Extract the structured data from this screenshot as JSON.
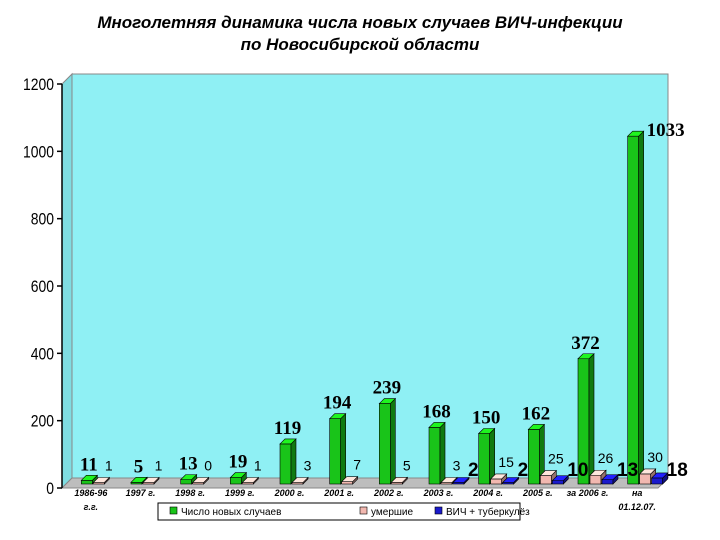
{
  "chart_data": {
    "type": "bar",
    "title": "Многолетняя динамика числа новых случаев ВИЧ-инфекции",
    "subtitle": "по Новосибирской области",
    "xlabel": "",
    "ylabel": "",
    "ylim": [
      0,
      1200
    ],
    "yticks": [
      "0",
      "200",
      "400",
      "600",
      "800",
      "1000",
      "1200"
    ],
    "grid": false,
    "legend_position": "bottom",
    "categories": [
      [
        "1986-96",
        "г.г."
      ],
      [
        "1997 г."
      ],
      [
        "1998 г."
      ],
      [
        "1999 г."
      ],
      [
        "2000 г."
      ],
      [
        "2001 г."
      ],
      [
        "2002 г."
      ],
      [
        "2003 г."
      ],
      [
        "2004 г."
      ],
      [
        "2005 г."
      ],
      [
        "за  2006 г."
      ],
      [
        "на",
        "01.12.07."
      ]
    ],
    "series": [
      {
        "name": "Число новых случаев",
        "color": "#19c419",
        "values": [
          11,
          5,
          13,
          19,
          119,
          194,
          239,
          168,
          150,
          162,
          372,
          1033
        ],
        "labels": [
          "11",
          "5",
          "13",
          "19",
          "119",
          "194",
          "239",
          "168",
          "150",
          "162",
          "372",
          "1033"
        ]
      },
      {
        "name": "умершие",
        "color": "#f2b8b0",
        "values": [
          1,
          1,
          0,
          1,
          3,
          7,
          5,
          3,
          15,
          25,
          26,
          30
        ],
        "labels": [
          "1",
          "1",
          "0",
          "1",
          "3",
          "7",
          "5",
          "3",
          "15",
          "25",
          "26",
          "30"
        ]
      },
      {
        "name": "ВИЧ + туберкулёз",
        "color": "#1a1acc",
        "values": [
          null,
          null,
          null,
          null,
          null,
          null,
          null,
          2,
          2,
          10,
          13,
          18
        ],
        "labels": [
          "",
          "",
          "",
          "",
          "",
          "",
          "",
          "2",
          "2",
          "10",
          "13",
          "18"
        ]
      }
    ]
  }
}
